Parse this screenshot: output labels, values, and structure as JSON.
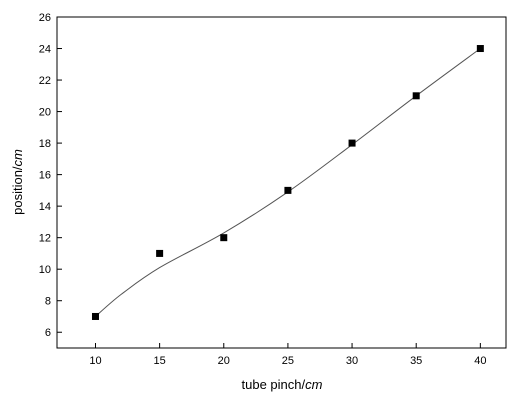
{
  "chart_data": {
    "type": "scatter",
    "title": "",
    "xlabel": "tube pinch/",
    "xlabel_unit": "cm",
    "ylabel": "position/",
    "ylabel_unit": "cm",
    "xlim": [
      7,
      42
    ],
    "ylim": [
      5,
      26
    ],
    "xticks": [
      10,
      15,
      20,
      25,
      30,
      35,
      40
    ],
    "yticks": [
      6,
      8,
      10,
      12,
      14,
      16,
      18,
      20,
      22,
      24,
      26
    ],
    "grid": false,
    "legend": "none",
    "marker_color": "#000000",
    "line_color": "#555555",
    "series": [
      {
        "points": [
          {
            "x": 10,
            "y": 7
          },
          {
            "x": 15,
            "y": 11
          },
          {
            "x": 20,
            "y": 12
          },
          {
            "x": 25,
            "y": 15
          },
          {
            "x": 30,
            "y": 18
          },
          {
            "x": 35,
            "y": 21
          },
          {
            "x": 40,
            "y": 24
          }
        ]
      }
    ],
    "fit_curve": [
      {
        "x": 10,
        "y": 7
      },
      {
        "x": 12,
        "y": 8.4
      },
      {
        "x": 15,
        "y": 10.1
      },
      {
        "x": 20,
        "y": 12.3
      },
      {
        "x": 25,
        "y": 14.9
      },
      {
        "x": 30,
        "y": 17.9
      },
      {
        "x": 35,
        "y": 21.0
      },
      {
        "x": 40,
        "y": 24
      }
    ]
  }
}
